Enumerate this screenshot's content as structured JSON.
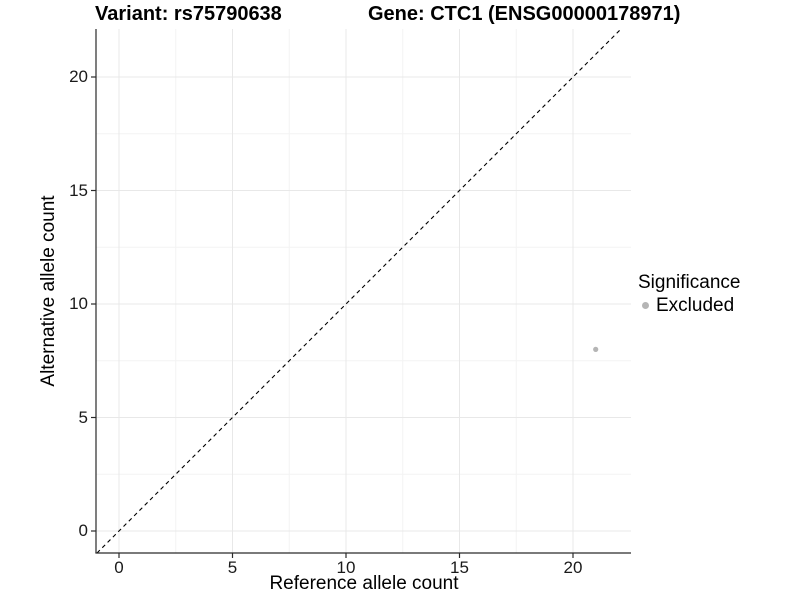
{
  "title": {
    "variant": "Variant: rs75790638",
    "gene": "Gene: CTC1 (ENSG00000178971)"
  },
  "chart_data": {
    "type": "scatter",
    "title": "Variant: rs75790638    Gene: CTC1 (ENSG00000178971)",
    "xlabel": "Reference allele count",
    "ylabel": "Alternative allele count",
    "xlim": [
      -1.0,
      22.6
    ],
    "ylim": [
      -1.0,
      22.1
    ],
    "xticks": [
      0,
      5,
      10,
      15,
      20
    ],
    "yticks": [
      0,
      5,
      10,
      15,
      20
    ],
    "minor_xticks": [
      2.5,
      7.5,
      12.5,
      17.5
    ],
    "minor_yticks": [
      2.5,
      7.5,
      12.5,
      17.5
    ],
    "grid": "major and minor gridlines, light gray on white",
    "identity_line": {
      "slope": 1,
      "intercept": 0,
      "style": "dashed",
      "color": "#000000"
    },
    "series": [
      {
        "name": "Excluded",
        "color": "#b5b5b5",
        "points": [
          {
            "x": 21,
            "y": 8
          }
        ]
      }
    ],
    "legend": {
      "title": "Significance",
      "position": "right",
      "entries": [
        {
          "label": "Excluded",
          "color": "#b5b5b5",
          "marker": "circle"
        }
      ]
    },
    "colors": {
      "background": "#ffffff",
      "grid_major": "#e8e8e8",
      "grid_minor": "#f3f3f3",
      "axis_line": "#2a2a2a",
      "point": "#b5b5b5"
    }
  }
}
